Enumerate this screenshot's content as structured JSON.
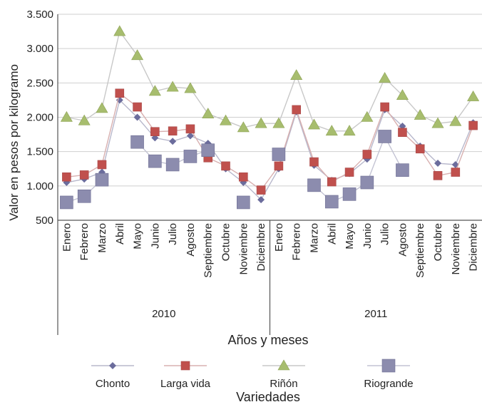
{
  "chart_data": {
    "type": "line",
    "ylabel": "Valor en pesos por kilogramo",
    "xlabel": "Años y meses",
    "legend_title": "Variedades",
    "legend_position": "bottom",
    "grid": true,
    "ylim": [
      500,
      3500
    ],
    "yticks": [
      "500",
      "1.000",
      "1.500",
      "2.000",
      "2.500",
      "3.000",
      "3.500"
    ],
    "ytick_values": [
      500,
      1000,
      1500,
      2000,
      2500,
      3000,
      3500
    ],
    "months": [
      "Enero",
      "Febrero",
      "Marzo",
      "Abril",
      "Mayo",
      "Junio",
      "Julio",
      "Agosto",
      "Septiembre",
      "Octubre",
      "Noviembre",
      "Diciembre",
      "Enero",
      "Febrero",
      "Marzo",
      "Abril",
      "Mayo",
      "Junio",
      "Julio",
      "Agosto",
      "Septiembre",
      "Octubre",
      "Noviembre",
      "Diciembre"
    ],
    "years": [
      {
        "label": "2010",
        "start": 0,
        "end": 11
      },
      {
        "label": "2011",
        "start": 12,
        "end": 23
      }
    ],
    "series": [
      {
        "name": "Chonto",
        "marker": "diamond",
        "color": "#6b6c9c",
        "line": "#b8b8cc",
        "values": [
          1050,
          1100,
          1200,
          2250,
          2000,
          1700,
          1650,
          1730,
          1620,
          1250,
          1050,
          800,
          1250,
          2080,
          1300,
          1080,
          1180,
          1390,
          2110,
          1870,
          1580,
          1330,
          1310,
          1920
        ]
      },
      {
        "name": "Larga vida",
        "marker": "square",
        "color": "#c0504d",
        "line": "#d8b0b0",
        "values": [
          1130,
          1160,
          1310,
          2350,
          2150,
          1790,
          1800,
          1830,
          1410,
          1290,
          1130,
          940,
          1290,
          2110,
          1350,
          1060,
          1200,
          1460,
          2150,
          1780,
          1540,
          1150,
          1200,
          1880
        ]
      },
      {
        "name": "Riñón",
        "marker": "triangle",
        "color": "#a7bd6e",
        "line": "#c8c8c8",
        "values": [
          2000,
          1950,
          2130,
          3250,
          2900,
          2380,
          2440,
          2420,
          2050,
          1950,
          1850,
          1910,
          1910,
          2610,
          1890,
          1800,
          1800,
          2000,
          2570,
          2320,
          2030,
          1910,
          1940,
          2300
        ]
      },
      {
        "name": "Riogrande",
        "marker": "bigsquare",
        "color": "#8c8cae",
        "line": "#c4c4d4",
        "values": [
          760,
          850,
          1090,
          null,
          1640,
          1360,
          1310,
          1430,
          1520,
          null,
          760,
          null,
          1460,
          null,
          1010,
          770,
          880,
          1050,
          1720,
          1230,
          null,
          null,
          null,
          null
        ]
      }
    ]
  }
}
